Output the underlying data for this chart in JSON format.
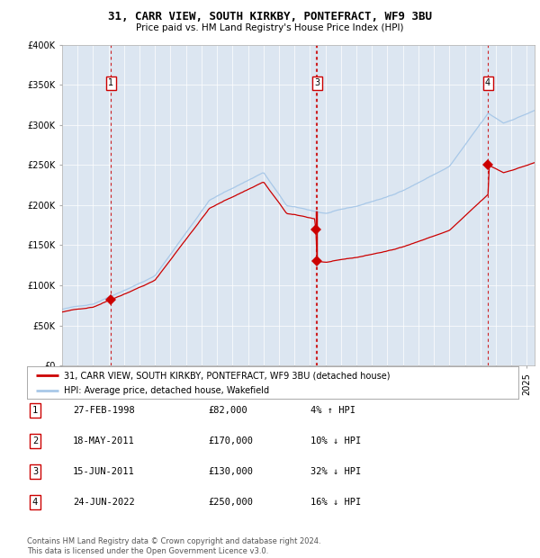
{
  "title": "31, CARR VIEW, SOUTH KIRKBY, PONTEFRACT, WF9 3BU",
  "subtitle": "Price paid vs. HM Land Registry's House Price Index (HPI)",
  "ylim": [
    0,
    400000
  ],
  "yticks": [
    0,
    50000,
    100000,
    150000,
    200000,
    250000,
    300000,
    350000,
    400000
  ],
  "plot_bg_color": "#dce6f1",
  "hpi_color": "#a8c8e8",
  "price_color": "#cc0000",
  "legend_label_price": "31, CARR VIEW, SOUTH KIRKBY, PONTEFRACT, WF9 3BU (detached house)",
  "legend_label_hpi": "HPI: Average price, detached house, Wakefield",
  "table_rows": [
    {
      "num": 1,
      "date": "27-FEB-1998",
      "price": "£82,000",
      "hpi": "4% ↑ HPI"
    },
    {
      "num": 2,
      "date": "18-MAY-2011",
      "price": "£170,000",
      "hpi": "10% ↓ HPI"
    },
    {
      "num": 3,
      "date": "15-JUN-2011",
      "price": "£130,000",
      "hpi": "32% ↓ HPI"
    },
    {
      "num": 4,
      "date": "24-JUN-2022",
      "price": "£250,000",
      "hpi": "16% ↓ HPI"
    }
  ],
  "footnote": "Contains HM Land Registry data © Crown copyright and database right 2024.\nThis data is licensed under the Open Government Licence v3.0.",
  "sales": [
    {
      "label": 1,
      "date_num": 1998.15,
      "price": 82000,
      "show_box": true
    },
    {
      "label": 2,
      "date_num": 2011.38,
      "price": 170000,
      "show_box": false
    },
    {
      "label": 3,
      "date_num": 2011.46,
      "price": 130000,
      "show_box": true
    },
    {
      "label": 4,
      "date_num": 2022.48,
      "price": 250000,
      "show_box": true
    }
  ],
  "xmin": 1995,
  "xmax": 2025.5
}
